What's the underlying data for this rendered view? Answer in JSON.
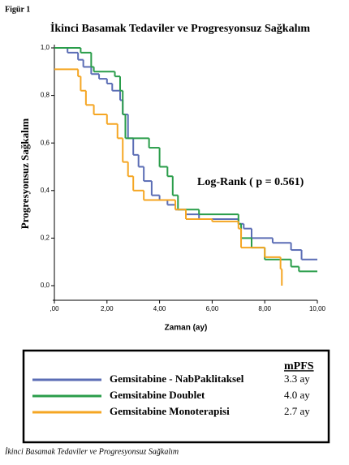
{
  "chart_data": {
    "type": "step",
    "figure_label": "Figür 1",
    "title": "İkinci Basamak Tedaviler ve Progresyonsuz Sağkalım",
    "x_label": "Zaman (ay)",
    "y_label": "Progresyonsuz Sağkalım",
    "annotation": "Log-Rank ( p = 0.561)",
    "legend_header": "mPFS",
    "caption": "İkinci Basamak Tedaviler ve Progresyonsuz Sağkalım",
    "xlim": [
      0,
      10
    ],
    "ylim": [
      0,
      1
    ],
    "xticks": [
      {
        "value": 0,
        "label": ",00"
      },
      {
        "value": 2,
        "label": "2,00"
      },
      {
        "value": 4,
        "label": "4,00"
      },
      {
        "value": 6,
        "label": "6,00"
      },
      {
        "value": 8,
        "label": "8,00"
      },
      {
        "value": 10,
        "label": "10,00"
      }
    ],
    "yticks": [
      {
        "value": 0,
        "label": "0,0"
      },
      {
        "value": 0.2,
        "label": "0,2"
      },
      {
        "value": 0.4,
        "label": "0,4"
      },
      {
        "value": 0.6,
        "label": "0,6"
      },
      {
        "value": 0.8,
        "label": "0,8"
      },
      {
        "value": 1,
        "label": "1,0"
      }
    ],
    "series": [
      {
        "name": "Gemsitabine - NabPaklitaksel",
        "color": "#5b6db5",
        "mpfs": "3.3 ay",
        "x": [
          0,
          0.5,
          0.9,
          1.1,
          1.4,
          1.7,
          2.0,
          2.2,
          2.5,
          2.6,
          2.8,
          3.0,
          3.2,
          3.4,
          3.7,
          4.0,
          4.3,
          4.6,
          5.0,
          5.5,
          7.0,
          7.2,
          7.5,
          8.3,
          9.0,
          9.4,
          10.0
        ],
        "values": [
          1.0,
          0.98,
          0.95,
          0.92,
          0.89,
          0.87,
          0.85,
          0.82,
          0.78,
          0.72,
          0.62,
          0.55,
          0.5,
          0.44,
          0.38,
          0.36,
          0.34,
          0.32,
          0.3,
          0.28,
          0.26,
          0.24,
          0.2,
          0.18,
          0.15,
          0.11,
          0.11
        ]
      },
      {
        "name": "Gemsitabine Doublet",
        "color": "#2a9d4a",
        "mpfs": "4.0 ay",
        "x": [
          0,
          1.0,
          1.4,
          1.5,
          2.3,
          2.5,
          2.6,
          2.7,
          3.6,
          4.0,
          4.3,
          4.5,
          4.7,
          5.5,
          7.0,
          7.1,
          7.5,
          8.0,
          9.0,
          9.3,
          10.0
        ],
        "values": [
          1.0,
          0.98,
          0.92,
          0.9,
          0.88,
          0.82,
          0.72,
          0.62,
          0.58,
          0.5,
          0.46,
          0.38,
          0.32,
          0.3,
          0.26,
          0.2,
          0.16,
          0.11,
          0.08,
          0.06,
          0.06
        ]
      },
      {
        "name": "Gemsitabine Monoterapisi",
        "color": "#f5a623",
        "mpfs": "2.7 ay",
        "x": [
          0,
          0.9,
          1.0,
          1.2,
          1.5,
          2.0,
          2.4,
          2.6,
          2.8,
          3.0,
          3.4,
          4.6,
          5.0,
          6.0,
          7.0,
          7.1,
          8.0,
          8.6,
          8.65
        ],
        "values": [
          0.91,
          0.88,
          0.82,
          0.76,
          0.72,
          0.68,
          0.62,
          0.52,
          0.46,
          0.4,
          0.36,
          0.32,
          0.28,
          0.27,
          0.24,
          0.16,
          0.12,
          0.07,
          0.0
        ]
      }
    ]
  }
}
